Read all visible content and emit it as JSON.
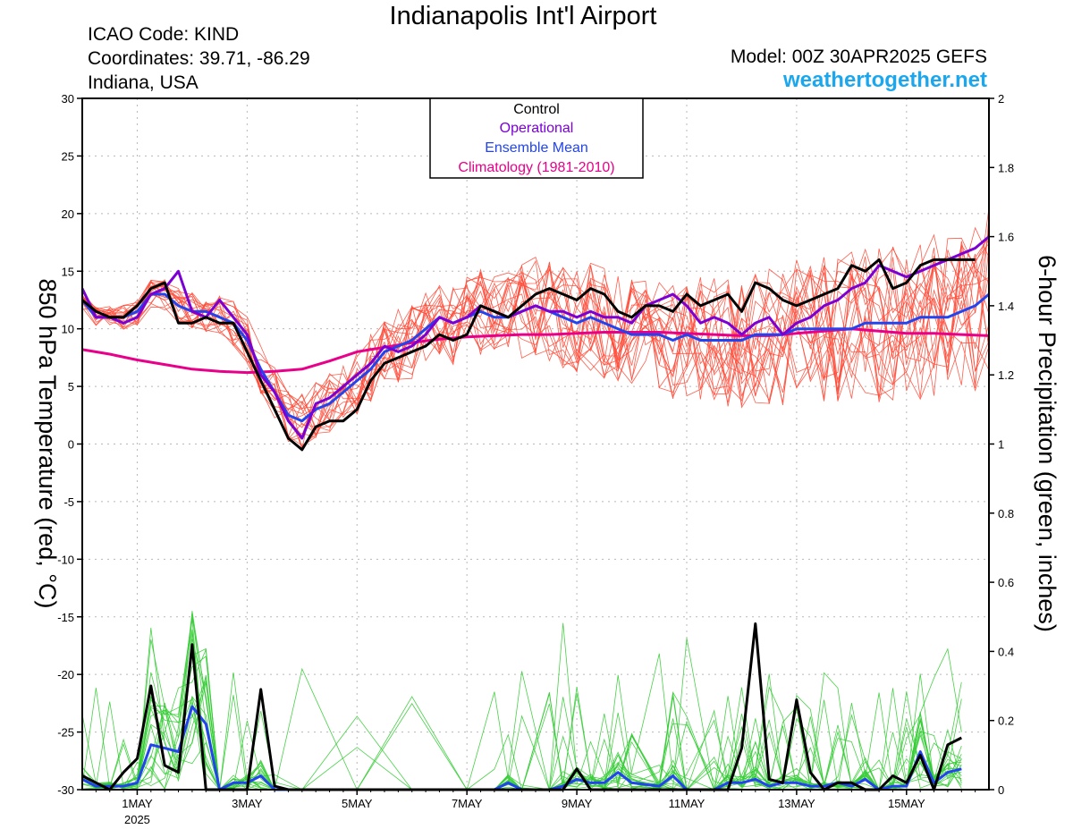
{
  "header": {
    "title": "Indianapolis Int'l Airport",
    "icao": "ICAO Code: KIND",
    "coordinates": "Coordinates: 39.71, -86.29",
    "region": "Indiana, USA",
    "model": "Model: 00Z 30APR2025 GEFS",
    "website": "weathertogether.net"
  },
  "colors": {
    "control": "#000000",
    "operational": "#7a00d4",
    "ensemble_mean": "#2244ee",
    "climatology": "#e8008a",
    "members_temp": "#ff4d3a",
    "members_precip": "#33cc33",
    "website": "#1aa7ee"
  },
  "legend": {
    "control": "Control",
    "operational": "Operational",
    "ensemble_mean": "Ensemble Mean",
    "climatology": "Climatology (1981-2010)"
  },
  "chart_data": {
    "type": "line",
    "ylabel_left": "850 hPa Temperature (red, °C)",
    "ylabel_right": "6-hour Precipitation (green, inches)",
    "y_left_range": [
      -30,
      30
    ],
    "y_left_ticks": [
      "30",
      "25",
      "20",
      "15",
      "10",
      "5",
      "0",
      "-5",
      "-10",
      "-15",
      "-20",
      "-25",
      "-30"
    ],
    "y_right_range": [
      0,
      2
    ],
    "y_right_ticks": [
      "2",
      "1.8",
      "1.6",
      "1.4",
      "1.2",
      "1",
      "0.8",
      "0.6",
      "0.4",
      "0.2",
      "0"
    ],
    "x_range_days": [
      0,
      16.5
    ],
    "x_ticks": [
      {
        "day": 1,
        "label": "1MAY",
        "sub": "2025"
      },
      {
        "day": 3,
        "label": "3MAY",
        "sub": ""
      },
      {
        "day": 5,
        "label": "5MAY",
        "sub": ""
      },
      {
        "day": 7,
        "label": "7MAY",
        "sub": ""
      },
      {
        "day": 9,
        "label": "9MAY",
        "sub": ""
      },
      {
        "day": 11,
        "label": "11MAY",
        "sub": ""
      },
      {
        "day": 13,
        "label": "13MAY",
        "sub": ""
      },
      {
        "day": 15,
        "label": "15MAY",
        "sub": ""
      }
    ],
    "grid": true,
    "legend_position": "top-center",
    "temperature": {
      "control": [
        [
          0,
          12.5
        ],
        [
          0.25,
          11.5
        ],
        [
          0.5,
          11
        ],
        [
          0.75,
          11
        ],
        [
          1,
          12
        ],
        [
          1.25,
          13.5
        ],
        [
          1.5,
          14
        ],
        [
          1.75,
          10.5
        ],
        [
          2,
          10.5
        ],
        [
          2.25,
          11
        ],
        [
          2.5,
          10.5
        ],
        [
          2.75,
          10.5
        ],
        [
          3,
          8
        ],
        [
          3.25,
          5.5
        ],
        [
          3.5,
          3
        ],
        [
          3.75,
          0.5
        ],
        [
          4,
          -0.5
        ],
        [
          4.25,
          1.5
        ],
        [
          4.5,
          2
        ],
        [
          4.75,
          2
        ],
        [
          5,
          3
        ],
        [
          5.25,
          5.5
        ],
        [
          5.5,
          7
        ],
        [
          5.75,
          7.5
        ],
        [
          6,
          8
        ],
        [
          6.25,
          8.5
        ],
        [
          6.5,
          9.5
        ],
        [
          6.75,
          9
        ],
        [
          7,
          9.5
        ],
        [
          7.25,
          12
        ],
        [
          7.5,
          11.5
        ],
        [
          7.75,
          11
        ],
        [
          8,
          12
        ],
        [
          8.25,
          13
        ],
        [
          8.5,
          13.5
        ],
        [
          8.75,
          13
        ],
        [
          9,
          12.5
        ],
        [
          9.25,
          13.5
        ],
        [
          9.5,
          13
        ],
        [
          9.75,
          11.5
        ],
        [
          10,
          11
        ],
        [
          10.25,
          12
        ],
        [
          10.5,
          12
        ],
        [
          10.75,
          11.5
        ],
        [
          11,
          13
        ],
        [
          11.25,
          12
        ],
        [
          11.5,
          12.5
        ],
        [
          11.75,
          13
        ],
        [
          12,
          11.5
        ],
        [
          12.25,
          14
        ],
        [
          12.5,
          13.5
        ],
        [
          12.75,
          12.5
        ],
        [
          13,
          12
        ],
        [
          13.25,
          12.5
        ],
        [
          13.5,
          13
        ],
        [
          13.75,
          13.5
        ],
        [
          14,
          15.5
        ],
        [
          14.25,
          15
        ],
        [
          14.5,
          16
        ],
        [
          14.75,
          13.5
        ],
        [
          15,
          14
        ],
        [
          15.25,
          15.5
        ],
        [
          15.5,
          16
        ],
        [
          15.75,
          16
        ],
        [
          16,
          16
        ],
        [
          16.25,
          16
        ]
      ],
      "operational": [
        [
          0,
          13.5
        ],
        [
          0.25,
          11
        ],
        [
          0.5,
          11
        ],
        [
          0.75,
          10.5
        ],
        [
          1,
          11
        ],
        [
          1.25,
          13
        ],
        [
          1.5,
          13.5
        ],
        [
          1.75,
          15
        ],
        [
          2,
          11.5
        ],
        [
          2.25,
          11
        ],
        [
          2.5,
          12.5
        ],
        [
          2.75,
          11
        ],
        [
          3,
          9.5
        ],
        [
          3.25,
          6
        ],
        [
          3.5,
          4.5
        ],
        [
          3.75,
          2
        ],
        [
          4,
          0.5
        ],
        [
          4.25,
          3.5
        ],
        [
          4.5,
          4
        ],
        [
          4.75,
          5
        ],
        [
          5,
          6
        ],
        [
          5.25,
          7
        ],
        [
          5.5,
          8.5
        ],
        [
          5.75,
          8
        ],
        [
          6,
          8.5
        ],
        [
          6.25,
          9.5
        ],
        [
          6.5,
          11
        ],
        [
          6.75,
          10.5
        ],
        [
          7,
          11
        ],
        [
          7.25,
          12
        ],
        [
          7.5,
          11.5
        ],
        [
          7.75,
          11
        ],
        [
          8,
          11.5
        ],
        [
          8.25,
          12
        ],
        [
          8.5,
          11.5
        ],
        [
          8.75,
          11.5
        ],
        [
          9,
          11
        ],
        [
          9.25,
          11.5
        ],
        [
          9.5,
          11
        ],
        [
          9.75,
          11
        ],
        [
          10,
          10.5
        ],
        [
          10.25,
          12
        ],
        [
          10.5,
          12.5
        ],
        [
          10.75,
          13
        ],
        [
          11,
          12
        ],
        [
          11.25,
          10.5
        ],
        [
          11.5,
          11
        ],
        [
          11.75,
          10.5
        ],
        [
          12,
          9.5
        ],
        [
          12.25,
          10.5
        ],
        [
          12.5,
          11
        ],
        [
          12.75,
          9.5
        ],
        [
          13,
          10.5
        ],
        [
          13.25,
          11
        ],
        [
          13.5,
          12
        ],
        [
          13.75,
          12.5
        ],
        [
          14,
          13.5
        ],
        [
          14.25,
          14
        ],
        [
          14.5,
          15.5
        ],
        [
          14.75,
          15
        ],
        [
          15,
          14.5
        ],
        [
          15.25,
          15
        ],
        [
          15.5,
          15.5
        ],
        [
          15.75,
          16
        ],
        [
          16,
          16.5
        ],
        [
          16.25,
          17
        ],
        [
          16.5,
          18
        ]
      ],
      "ensemble_mean": [
        [
          0,
          12.5
        ],
        [
          0.25,
          11
        ],
        [
          0.5,
          11
        ],
        [
          0.75,
          11
        ],
        [
          1,
          11.5
        ],
        [
          1.25,
          13
        ],
        [
          1.5,
          13
        ],
        [
          1.75,
          12
        ],
        [
          2,
          11.5
        ],
        [
          2.25,
          11.5
        ],
        [
          2.5,
          11
        ],
        [
          2.75,
          10.5
        ],
        [
          3,
          9
        ],
        [
          3.25,
          6.5
        ],
        [
          3.5,
          4.5
        ],
        [
          3.75,
          2.5
        ],
        [
          4,
          2
        ],
        [
          4.25,
          3
        ],
        [
          4.5,
          3.5
        ],
        [
          4.75,
          4.5
        ],
        [
          5,
          5.5
        ],
        [
          5.25,
          6.5
        ],
        [
          5.5,
          8
        ],
        [
          5.75,
          8.5
        ],
        [
          6,
          9
        ],
        [
          6.25,
          10
        ],
        [
          6.5,
          11
        ],
        [
          6.75,
          10.5
        ],
        [
          7,
          11
        ],
        [
          7.25,
          11.5
        ],
        [
          7.5,
          11
        ],
        [
          7.75,
          11
        ],
        [
          8,
          11.5
        ],
        [
          8.25,
          12
        ],
        [
          8.5,
          11.5
        ],
        [
          8.75,
          11
        ],
        [
          9,
          10.5
        ],
        [
          9.25,
          11
        ],
        [
          9.5,
          10.5
        ],
        [
          9.75,
          10
        ],
        [
          10,
          9.5
        ],
        [
          10.25,
          9.5
        ],
        [
          10.5,
          9.5
        ],
        [
          10.75,
          9
        ],
        [
          11,
          9.5
        ],
        [
          11.25,
          9
        ],
        [
          11.5,
          9
        ],
        [
          11.75,
          9
        ],
        [
          12,
          9
        ],
        [
          12.25,
          9.5
        ],
        [
          12.5,
          9.5
        ],
        [
          12.75,
          9.5
        ],
        [
          13,
          10
        ],
        [
          13.25,
          10
        ],
        [
          13.5,
          10
        ],
        [
          13.75,
          10
        ],
        [
          14,
          10
        ],
        [
          14.25,
          10.5
        ],
        [
          14.5,
          10.5
        ],
        [
          14.75,
          10.5
        ],
        [
          15,
          10.5
        ],
        [
          15.25,
          11
        ],
        [
          15.5,
          11
        ],
        [
          15.75,
          11
        ],
        [
          16,
          11.5
        ],
        [
          16.25,
          12
        ],
        [
          16.5,
          13
        ]
      ],
      "climatology": [
        [
          0,
          8.2
        ],
        [
          0.5,
          7.8
        ],
        [
          1,
          7.3
        ],
        [
          1.5,
          6.9
        ],
        [
          2,
          6.5
        ],
        [
          2.5,
          6.3
        ],
        [
          3,
          6.2
        ],
        [
          3.5,
          6.3
        ],
        [
          4,
          6.5
        ],
        [
          4.5,
          7.2
        ],
        [
          5,
          8
        ],
        [
          5.5,
          8.4
        ],
        [
          6,
          8.8
        ],
        [
          6.5,
          9.1
        ],
        [
          7,
          9.3
        ],
        [
          7.5,
          9.4
        ],
        [
          8,
          9.5
        ],
        [
          8.5,
          9.5
        ],
        [
          9,
          9.6
        ],
        [
          9.5,
          9.7
        ],
        [
          10,
          9.7
        ],
        [
          10.5,
          9.7
        ],
        [
          11,
          9.6
        ],
        [
          11.5,
          9.5
        ],
        [
          12,
          9.4
        ],
        [
          12.5,
          9.4
        ],
        [
          13,
          9.6
        ],
        [
          13.5,
          9.8
        ],
        [
          14,
          10
        ],
        [
          14.5,
          9.8
        ],
        [
          15,
          9.6
        ],
        [
          15.5,
          9.6
        ],
        [
          16,
          9.5
        ],
        [
          16.5,
          9.4
        ]
      ]
    },
    "precipitation": {
      "control": [
        [
          0,
          0.04
        ],
        [
          0.25,
          0.02
        ],
        [
          0.5,
          0
        ],
        [
          0.75,
          0.05
        ],
        [
          1,
          0.09
        ],
        [
          1.25,
          0.3
        ],
        [
          1.5,
          0.07
        ],
        [
          1.75,
          0.05
        ],
        [
          2,
          0.42
        ],
        [
          2.25,
          0
        ],
        [
          2.5,
          0
        ],
        [
          2.75,
          0
        ],
        [
          3,
          0
        ],
        [
          3.25,
          0.29
        ],
        [
          3.5,
          0.01
        ],
        [
          3.75,
          0
        ],
        [
          4,
          0
        ],
        [
          5,
          0
        ],
        [
          6,
          0
        ],
        [
          7,
          0
        ],
        [
          8,
          0
        ],
        [
          8.5,
          0
        ],
        [
          8.75,
          0
        ],
        [
          9,
          0.06
        ],
        [
          9.25,
          0
        ],
        [
          9.5,
          0
        ],
        [
          10,
          0
        ],
        [
          10.5,
          0
        ],
        [
          11,
          0
        ],
        [
          11.5,
          0
        ],
        [
          11.75,
          0
        ],
        [
          12,
          0.12
        ],
        [
          12.25,
          0.48
        ],
        [
          12.5,
          0.03
        ],
        [
          12.75,
          0.02
        ],
        [
          13,
          0.26
        ],
        [
          13.25,
          0.05
        ],
        [
          13.5,
          0
        ],
        [
          13.75,
          0.02
        ],
        [
          14,
          0.02
        ],
        [
          14.25,
          0
        ],
        [
          14.5,
          0
        ],
        [
          14.75,
          0.04
        ],
        [
          15,
          0.02
        ],
        [
          15.25,
          0.1
        ],
        [
          15.5,
          0
        ],
        [
          15.75,
          0.13
        ],
        [
          16,
          0.15
        ]
      ],
      "ensemble_mean": [
        [
          0,
          0.03
        ],
        [
          0.25,
          0.01
        ],
        [
          0.5,
          0.01
        ],
        [
          0.75,
          0.01
        ],
        [
          1,
          0.02
        ],
        [
          1.25,
          0.13
        ],
        [
          1.5,
          0.12
        ],
        [
          1.75,
          0.11
        ],
        [
          2,
          0.24
        ],
        [
          2.25,
          0.19
        ],
        [
          2.5,
          0
        ],
        [
          2.75,
          0.02
        ],
        [
          3,
          0.02
        ],
        [
          3.25,
          0.04
        ],
        [
          3.5,
          0
        ],
        [
          4,
          0
        ],
        [
          5,
          0
        ],
        [
          6,
          0
        ],
        [
          7,
          0
        ],
        [
          7.5,
          0
        ],
        [
          7.75,
          0.02
        ],
        [
          8,
          0
        ],
        [
          8.5,
          0
        ],
        [
          8.75,
          0.01
        ],
        [
          9,
          0.03
        ],
        [
          9.25,
          0.02
        ],
        [
          9.5,
          0.02
        ],
        [
          9.75,
          0.05
        ],
        [
          10,
          0.02
        ],
        [
          10.5,
          0.01
        ],
        [
          10.75,
          0.04
        ],
        [
          11,
          0
        ],
        [
          11.5,
          0
        ],
        [
          11.75,
          0.02
        ],
        [
          12,
          0.02
        ],
        [
          12.25,
          0.03
        ],
        [
          12.5,
          0.01
        ],
        [
          12.75,
          0.02
        ],
        [
          13,
          0.02
        ],
        [
          13.25,
          0.01
        ],
        [
          13.5,
          0.01
        ],
        [
          13.75,
          0.02
        ],
        [
          14,
          0.01
        ],
        [
          14.25,
          0.03
        ],
        [
          14.5,
          0
        ],
        [
          14.75,
          0.01
        ],
        [
          15,
          0.01
        ],
        [
          15.25,
          0.11
        ],
        [
          15.5,
          0.02
        ],
        [
          15.75,
          0.05
        ],
        [
          16,
          0.06
        ]
      ]
    }
  }
}
